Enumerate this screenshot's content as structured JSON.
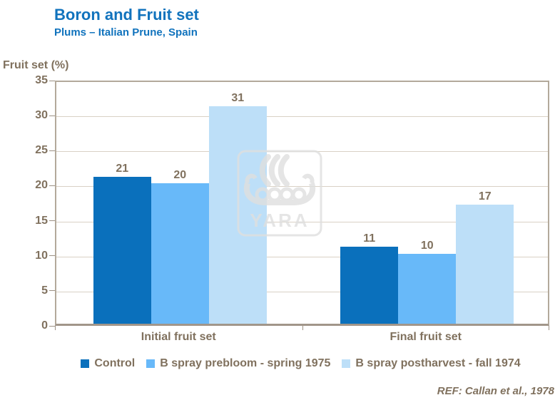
{
  "header": {
    "title": "Boron and Fruit set",
    "subtitle": "Plums – Italian Prune, Spain"
  },
  "chart_data": {
    "type": "bar",
    "title": "Boron and Fruit set",
    "subtitle": "Plums – Italian Prune, Spain",
    "ylabel": "Fruit set (%)",
    "xlabel": "",
    "ylim": [
      0,
      35
    ],
    "yticks": [
      35,
      30,
      25,
      20,
      15,
      10,
      5,
      0
    ],
    "grid": true,
    "value_labels": true,
    "legend_position": "bottom",
    "categories": [
      "Initial fruit set",
      "Final fruit set"
    ],
    "series": [
      {
        "name": "Control",
        "color": "#0A70BC",
        "values": [
          21,
          11
        ]
      },
      {
        "name": "B spray prebloom - spring 1975",
        "color": "#68B9F9",
        "values": [
          20,
          10
        ]
      },
      {
        "name": "B spray postharvest - fall 1974",
        "color": "#BDDFF8",
        "values": [
          31,
          17
        ]
      }
    ]
  },
  "watermark": {
    "text": "YARA"
  },
  "footer": {
    "reference": "REF: Callan et al., 1978"
  },
  "colors": {
    "title_blue": "#1173BD",
    "axis_text": "#80715E",
    "grid_line": "#D9D1C5",
    "plot_border": "#B3A99B",
    "baseline": "#A1968A",
    "watermark_gray": "#DFDFDF"
  }
}
